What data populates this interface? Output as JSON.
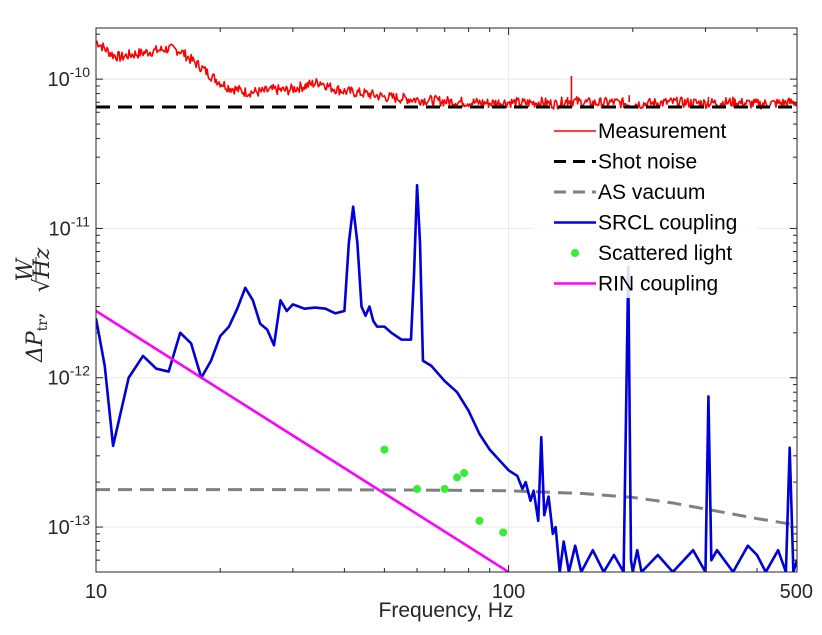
{
  "chart_data": {
    "type": "line",
    "title": "",
    "xlabel": "Frequency, Hz",
    "ylabel": {
      "delta": "ΔP",
      "subscript": "tr",
      "unit_num": "W",
      "unit_den": "√Hz",
      "separator": ","
    },
    "x_scale": "log",
    "y_scale": "log",
    "xlim": [
      10,
      500
    ],
    "ylim": [
      5e-14,
      2.2e-10
    ],
    "x_ticks": [
      {
        "value": 10,
        "label": "10"
      },
      {
        "value": 100,
        "label": "100"
      },
      {
        "value": 500,
        "label": "500"
      }
    ],
    "y_ticks": [
      {
        "value": 1e-13,
        "base": "10",
        "exp": "-13"
      },
      {
        "value": 1e-12,
        "base": "10",
        "exp": "-12"
      },
      {
        "value": 1e-11,
        "base": "10",
        "exp": "-11"
      },
      {
        "value": 1e-10,
        "base": "10",
        "exp": "-10"
      }
    ],
    "grid": true,
    "legend_position": "top-right",
    "series": [
      {
        "name": "Measurement",
        "style": "line",
        "color": "#ff0000",
        "x": [
          10,
          10.5,
          11,
          11.5,
          12,
          13,
          14,
          15,
          16,
          17,
          18,
          19,
          20,
          21,
          22,
          23,
          25,
          27,
          29,
          31,
          33,
          35,
          37,
          40,
          45,
          50,
          60,
          70,
          80,
          90,
          100,
          110,
          120,
          130,
          140,
          150,
          160,
          180,
          200,
          250,
          300,
          350,
          400,
          450,
          500
        ],
        "y": [
          1.8e-10,
          1.6e-10,
          1.45e-10,
          1.4e-10,
          1.45e-10,
          1.5e-10,
          1.55e-10,
          1.6e-10,
          1.55e-10,
          1.35e-10,
          1.2e-10,
          1.05e-10,
          9.5e-11,
          8.8e-11,
          8.5e-11,
          8.2e-11,
          8.2e-11,
          8.5e-11,
          8.4e-11,
          8.8e-11,
          9.2e-11,
          9.6e-11,
          8.8e-11,
          8.3e-11,
          8e-11,
          7.6e-11,
          7.3e-11,
          7.1e-11,
          7e-11,
          6.9e-11,
          7e-11,
          6.9e-11,
          7e-11,
          6.8e-11,
          7.2e-11,
          7e-11,
          6.9e-11,
          7e-11,
          6.8e-11,
          7e-11,
          6.9e-11,
          7e-11,
          6.8e-11,
          6.9e-11,
          7e-11
        ],
        "spikes": [
          {
            "x": 142,
            "y": 1.05e-10
          },
          {
            "x": 139,
            "y": 7.6e-11
          },
          {
            "x": 196,
            "y": 7.8e-11
          },
          {
            "x": 305,
            "y": 7.6e-11
          }
        ]
      },
      {
        "name": "Shot noise",
        "style": "dashed",
        "color": "#000000",
        "x": [
          10,
          500
        ],
        "y": [
          6.5e-11,
          6.5e-11
        ]
      },
      {
        "name": "AS vacuum",
        "style": "dashed",
        "color": "#808080",
        "x": [
          10,
          30,
          60,
          100,
          150,
          200,
          250,
          300,
          350,
          400,
          450,
          500
        ],
        "y": [
          1.78e-13,
          1.78e-13,
          1.77e-13,
          1.75e-13,
          1.68e-13,
          1.58e-13,
          1.45e-13,
          1.32e-13,
          1.22e-13,
          1.14e-13,
          1.08e-13,
          1.03e-13
        ]
      },
      {
        "name": "SRCL coupling",
        "style": "line",
        "color": "#0000dd",
        "x": [
          10,
          10.5,
          11,
          12,
          13,
          14,
          15,
          16,
          17,
          18,
          19,
          20,
          21,
          22,
          23,
          24,
          25,
          26,
          27,
          28,
          29,
          30,
          32,
          34,
          36,
          38,
          40,
          41,
          42,
          43,
          44,
          45,
          46,
          47,
          48,
          50,
          52,
          55,
          58,
          59,
          60,
          61,
          62,
          65,
          70,
          75,
          80,
          85,
          90,
          95,
          100,
          105,
          108,
          110,
          113,
          115,
          118,
          120,
          122,
          125,
          128,
          130,
          133,
          136,
          140,
          145,
          150,
          160,
          170,
          180,
          190,
          195,
          198,
          200,
          205,
          210,
          230,
          250,
          280,
          300,
          305,
          310,
          320,
          350,
          380,
          400,
          420,
          450,
          470,
          480,
          490,
          500
        ],
        "y": [
          2.5e-12,
          1.2e-12,
          3.5e-13,
          1e-12,
          1.4e-12,
          1.15e-12,
          1.1e-12,
          2e-12,
          1.7e-12,
          1e-12,
          1.3e-12,
          1.9e-12,
          2.2e-12,
          2.9e-12,
          4e-12,
          3.3e-12,
          2.3e-12,
          2.1e-12,
          1.65e-12,
          3.3e-12,
          2.8e-12,
          3.1e-12,
          2.9e-12,
          2.95e-12,
          2.9e-12,
          2.7e-12,
          2.8e-12,
          8e-12,
          1.4e-11,
          8e-12,
          3e-12,
          2.6e-12,
          3e-12,
          2.4e-12,
          2.2e-12,
          2.2e-12,
          2e-12,
          1.8e-12,
          1.8e-12,
          5e-12,
          1.95e-11,
          8e-12,
          1.3e-12,
          1.2e-12,
          9.5e-13,
          8e-13,
          6e-13,
          4.2e-13,
          3.3e-13,
          2.8e-13,
          2.4e-13,
          2.2e-13,
          1.8e-13,
          2e-13,
          1.5e-13,
          1.75e-13,
          1.1e-13,
          4e-13,
          1.2e-13,
          1.6e-13,
          9e-14,
          1e-13,
          5e-14,
          8e-14,
          5e-14,
          7.5e-14,
          5e-14,
          7e-14,
          5e-14,
          6.5e-14,
          5e-14,
          5.5e-12,
          6e-14,
          5e-14,
          7e-14,
          5e-14,
          6.5e-14,
          5e-14,
          7e-14,
          5e-14,
          7.5e-13,
          6e-14,
          7e-14,
          5e-14,
          7.5e-14,
          6.5e-14,
          5e-14,
          7e-14,
          5e-14,
          3.4e-13,
          5e-14,
          6e-14
        ]
      },
      {
        "name": "Scattered light",
        "style": "points",
        "color": "#33ee33",
        "x": [
          50,
          60,
          70,
          75,
          78,
          85,
          97
        ],
        "y": [
          3.3e-13,
          1.8e-13,
          1.8e-13,
          2.15e-13,
          2.3e-13,
          1.1e-13,
          9.2e-14
        ]
      },
      {
        "name": "RIN coupling",
        "style": "line",
        "color": "#ff00ff",
        "x": [
          10,
          100
        ],
        "y": [
          2.8e-12,
          5e-14
        ]
      }
    ]
  }
}
